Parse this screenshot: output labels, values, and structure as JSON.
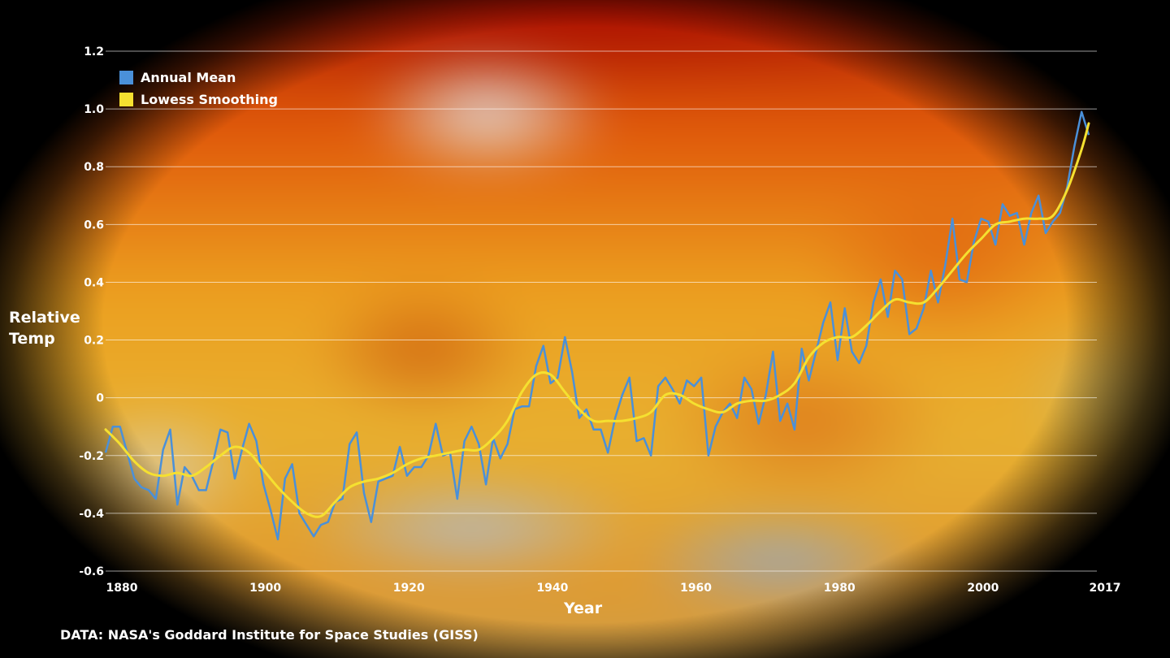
{
  "chart_data": {
    "type": "line",
    "xlabel": "Year",
    "ylabel_lines": [
      "Relative",
      "Temp"
    ],
    "source": "DATA: NASA's Goddard Institute for Space Studies (GISS)",
    "xlim": [
      1880,
      2017
    ],
    "ylim": [
      -0.6,
      1.2
    ],
    "yticks": [
      1.2,
      1.0,
      0.8,
      0.6,
      0.4,
      0.2,
      0,
      -0.2,
      -0.4,
      -0.6
    ],
    "ytick_labels": [
      "1.2",
      "1.0",
      "0.8",
      "0.6",
      "0.4",
      "0.2",
      "0",
      "-0.2",
      "-0.4",
      "-0.6"
    ],
    "xticks": [
      1880,
      1900,
      1920,
      1940,
      1960,
      1980,
      2000,
      2017
    ],
    "xtick_labels": [
      "1880",
      "1900",
      "1920",
      "1940",
      "1960",
      "1980",
      "2000",
      "2017"
    ],
    "grid": "horizontal",
    "legend_position": "top-left",
    "series": [
      {
        "name": "Annual Mean",
        "color": "#4a90d9",
        "start_year": 1880,
        "values": [
          -0.19,
          -0.1,
          -0.1,
          -0.19,
          -0.28,
          -0.31,
          -0.32,
          -0.35,
          -0.18,
          -0.11,
          -0.37,
          -0.24,
          -0.27,
          -0.32,
          -0.32,
          -0.22,
          -0.11,
          -0.12,
          -0.28,
          -0.18,
          -0.09,
          -0.15,
          -0.3,
          -0.39,
          -0.49,
          -0.28,
          -0.23,
          -0.4,
          -0.44,
          -0.48,
          -0.44,
          -0.43,
          -0.36,
          -0.35,
          -0.16,
          -0.12,
          -0.33,
          -0.43,
          -0.29,
          -0.28,
          -0.27,
          -0.17,
          -0.27,
          -0.24,
          -0.24,
          -0.2,
          -0.09,
          -0.2,
          -0.19,
          -0.35,
          -0.15,
          -0.1,
          -0.16,
          -0.3,
          -0.14,
          -0.21,
          -0.16,
          -0.04,
          -0.03,
          -0.03,
          0.11,
          0.18,
          0.05,
          0.07,
          0.21,
          0.09,
          -0.07,
          -0.04,
          -0.11,
          -0.11,
          -0.19,
          -0.07,
          0.01,
          0.07,
          -0.15,
          -0.14,
          -0.2,
          0.04,
          0.07,
          0.03,
          -0.02,
          0.06,
          0.04,
          0.07,
          -0.2,
          -0.1,
          -0.05,
          -0.02,
          -0.07,
          0.07,
          0.03,
          -0.09,
          0.01,
          0.16,
          -0.08,
          -0.02,
          -0.11,
          0.17,
          0.06,
          0.16,
          0.26,
          0.33,
          0.13,
          0.31,
          0.16,
          0.12,
          0.18,
          0.33,
          0.41,
          0.28,
          0.44,
          0.41,
          0.22,
          0.24,
          0.31,
          0.44,
          0.33,
          0.46,
          0.62,
          0.41,
          0.4,
          0.54,
          0.62,
          0.61,
          0.53,
          0.67,
          0.63,
          0.64,
          0.53,
          0.64,
          0.7,
          0.57,
          0.61,
          0.64,
          0.73,
          0.87,
          0.99,
          0.91
        ]
      },
      {
        "name": "Lowess Smoothing",
        "color": "#f5e030",
        "points": [
          [
            1880,
            -0.11
          ],
          [
            1882,
            -0.16
          ],
          [
            1884,
            -0.22
          ],
          [
            1886,
            -0.26
          ],
          [
            1888,
            -0.27
          ],
          [
            1890,
            -0.26
          ],
          [
            1892,
            -0.27
          ],
          [
            1894,
            -0.24
          ],
          [
            1896,
            -0.2
          ],
          [
            1898,
            -0.17
          ],
          [
            1900,
            -0.19
          ],
          [
            1902,
            -0.25
          ],
          [
            1904,
            -0.31
          ],
          [
            1906,
            -0.36
          ],
          [
            1908,
            -0.4
          ],
          [
            1910,
            -0.41
          ],
          [
            1912,
            -0.36
          ],
          [
            1914,
            -0.31
          ],
          [
            1916,
            -0.29
          ],
          [
            1918,
            -0.28
          ],
          [
            1920,
            -0.26
          ],
          [
            1922,
            -0.23
          ],
          [
            1924,
            -0.21
          ],
          [
            1926,
            -0.2
          ],
          [
            1928,
            -0.19
          ],
          [
            1930,
            -0.18
          ],
          [
            1932,
            -0.18
          ],
          [
            1934,
            -0.14
          ],
          [
            1936,
            -0.08
          ],
          [
            1938,
            0.02
          ],
          [
            1940,
            0.08
          ],
          [
            1942,
            0.08
          ],
          [
            1944,
            0.02
          ],
          [
            1946,
            -0.04
          ],
          [
            1948,
            -0.08
          ],
          [
            1950,
            -0.08
          ],
          [
            1952,
            -0.08
          ],
          [
            1954,
            -0.07
          ],
          [
            1956,
            -0.05
          ],
          [
            1958,
            0.01
          ],
          [
            1960,
            0.01
          ],
          [
            1962,
            -0.02
          ],
          [
            1964,
            -0.04
          ],
          [
            1966,
            -0.05
          ],
          [
            1968,
            -0.02
          ],
          [
            1970,
            -0.01
          ],
          [
            1972,
            -0.01
          ],
          [
            1974,
            0.01
          ],
          [
            1976,
            0.05
          ],
          [
            1978,
            0.14
          ],
          [
            1980,
            0.19
          ],
          [
            1982,
            0.21
          ],
          [
            1984,
            0.21
          ],
          [
            1986,
            0.25
          ],
          [
            1988,
            0.3
          ],
          [
            1990,
            0.34
          ],
          [
            1992,
            0.33
          ],
          [
            1994,
            0.33
          ],
          [
            1996,
            0.38
          ],
          [
            1998,
            0.44
          ],
          [
            2000,
            0.5
          ],
          [
            2002,
            0.55
          ],
          [
            2004,
            0.6
          ],
          [
            2006,
            0.61
          ],
          [
            2008,
            0.62
          ],
          [
            2010,
            0.62
          ],
          [
            2012,
            0.63
          ],
          [
            2014,
            0.72
          ],
          [
            2016,
            0.86
          ],
          [
            2017,
            0.95
          ]
        ]
      }
    ]
  }
}
